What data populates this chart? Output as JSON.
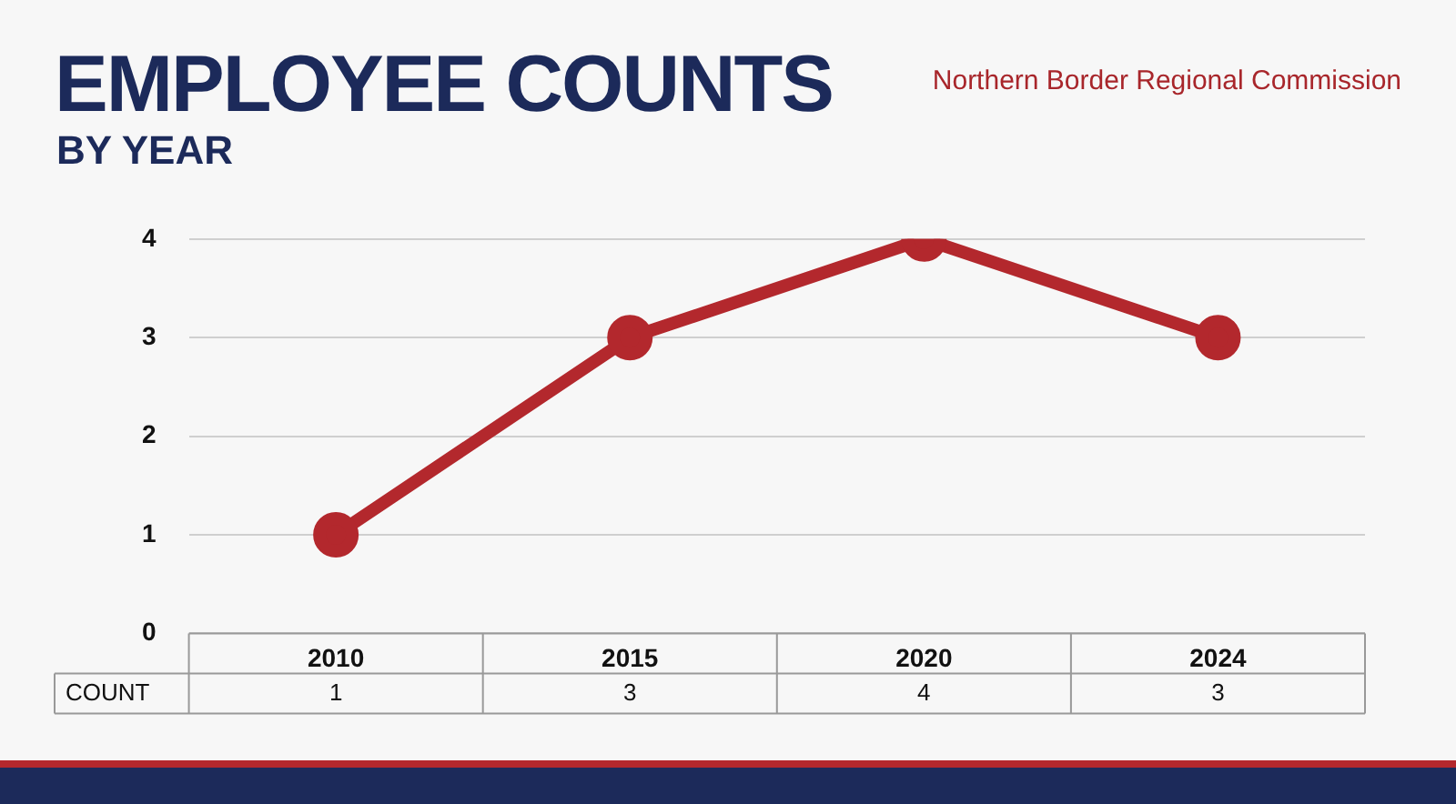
{
  "chart_data": {
    "type": "line",
    "title": "EMPLOYEE COUNTS",
    "subtitle": "BY YEAR",
    "annotations": [
      "Northern Border Regional Commission"
    ],
    "categories": [
      "2010",
      "2015",
      "2020",
      "2024"
    ],
    "series": [
      {
        "name": "COUNT",
        "color": "#b3282d",
        "values": [
          1,
          3,
          4,
          3
        ]
      }
    ],
    "ylim": [
      0,
      4
    ],
    "yticks": [
      0,
      1,
      2,
      3,
      4
    ],
    "grid": "y",
    "legend": false,
    "marker": "circle",
    "line_style": "solid",
    "data_labels": true
  }
}
